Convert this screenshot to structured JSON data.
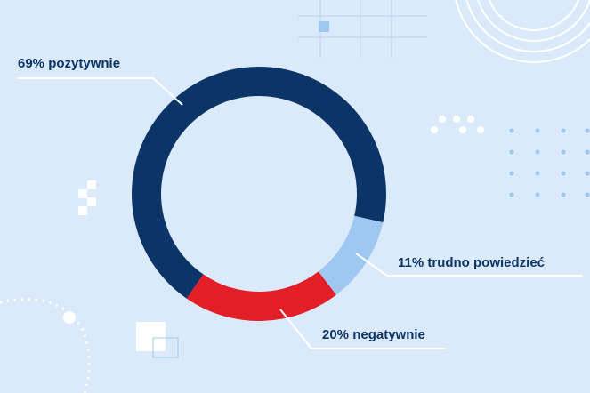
{
  "chart_data": {
    "type": "pie",
    "values": [
      69,
      11,
      20
    ],
    "value_labels": [
      "69% pozytywnie",
      "11% trudno powiedzieć",
      "20% negatywnie"
    ],
    "colors": [
      "#0b3467",
      "#9ec8f0",
      "#e21e26"
    ]
  }
}
